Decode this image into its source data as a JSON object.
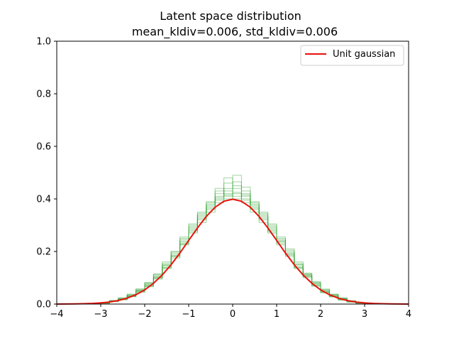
{
  "chart_data": {
    "type": "line",
    "title": "Latent space distribution",
    "subtitle": "mean_kldiv=0.006, std_kldiv=0.006",
    "xlabel": "",
    "ylabel": "",
    "xlim": [
      -4,
      4
    ],
    "ylim": [
      0,
      1.0
    ],
    "x_ticks": [
      "−4",
      "−3",
      "−2",
      "−1",
      "0",
      "1",
      "2",
      "3",
      "4"
    ],
    "y_ticks": [
      "0.0",
      "0.2",
      "0.4",
      "0.6",
      "0.8",
      "1.0"
    ],
    "grid": false,
    "legend": {
      "position": "top-right",
      "entries": [
        "Unit gaussian"
      ]
    },
    "colors": {
      "gaussian": "#e8120c",
      "histograms": "#2ca02c"
    },
    "series": [
      {
        "name": "Unit gaussian",
        "style": "line",
        "x": [
          -4.0,
          -3.8,
          -3.6,
          -3.4,
          -3.2,
          -3.0,
          -2.8,
          -2.6,
          -2.4,
          -2.2,
          -2.0,
          -1.8,
          -1.6,
          -1.4,
          -1.2,
          -1.0,
          -0.8,
          -0.6,
          -0.4,
          -0.2,
          0.0,
          0.2,
          0.4,
          0.6,
          0.8,
          1.0,
          1.2,
          1.4,
          1.6,
          1.8,
          2.0,
          2.2,
          2.4,
          2.6,
          2.8,
          3.0,
          3.2,
          3.4,
          3.6,
          3.8,
          4.0
        ],
        "y": [
          0.0001,
          0.0003,
          0.0006,
          0.0012,
          0.0024,
          0.0044,
          0.0079,
          0.0136,
          0.0224,
          0.0355,
          0.054,
          0.079,
          0.1109,
          0.1497,
          0.1942,
          0.242,
          0.2897,
          0.3332,
          0.3683,
          0.391,
          0.3989,
          0.391,
          0.3683,
          0.3332,
          0.2897,
          0.242,
          0.1942,
          0.1497,
          0.1109,
          0.079,
          0.054,
          0.0355,
          0.0224,
          0.0136,
          0.0079,
          0.0044,
          0.0024,
          0.0012,
          0.0006,
          0.0003,
          0.0001
        ]
      },
      {
        "style": "step",
        "bin_edges": [
          -3.0,
          -2.8,
          -2.6,
          -2.4,
          -2.2,
          -2.0,
          -1.8,
          -1.6,
          -1.4,
          -1.2,
          -1.0,
          -0.8,
          -0.6,
          -0.4,
          -0.2,
          0.0,
          0.2,
          0.4,
          0.6,
          0.8,
          1.0,
          1.2,
          1.4,
          1.6,
          1.8,
          2.0,
          2.2,
          2.4,
          2.6,
          2.8,
          3.0
        ],
        "counts": [
          0.005,
          0.012,
          0.02,
          0.03,
          0.052,
          0.075,
          0.105,
          0.15,
          0.19,
          0.25,
          0.3,
          0.34,
          0.38,
          0.44,
          0.41,
          0.42,
          0.395,
          0.37,
          0.335,
          0.29,
          0.24,
          0.2,
          0.15,
          0.11,
          0.08,
          0.05,
          0.035,
          0.02,
          0.012,
          0.006
        ]
      },
      {
        "style": "step",
        "bin_edges": [
          -3.0,
          -2.8,
          -2.6,
          -2.4,
          -2.2,
          -2.0,
          -1.8,
          -1.6,
          -1.4,
          -1.2,
          -1.0,
          -0.8,
          -0.6,
          -0.4,
          -0.2,
          0.0,
          0.2,
          0.4,
          0.6,
          0.8,
          1.0,
          1.2,
          1.4,
          1.6,
          1.8,
          2.0,
          2.2,
          2.4,
          2.6,
          2.8,
          3.0
        ],
        "counts": [
          0.004,
          0.01,
          0.018,
          0.034,
          0.048,
          0.07,
          0.1,
          0.135,
          0.18,
          0.23,
          0.29,
          0.32,
          0.36,
          0.4,
          0.46,
          0.41,
          0.42,
          0.35,
          0.32,
          0.28,
          0.235,
          0.19,
          0.14,
          0.105,
          0.07,
          0.046,
          0.03,
          0.018,
          0.009,
          0.004
        ]
      },
      {
        "style": "step",
        "bin_edges": [
          -3.0,
          -2.8,
          -2.6,
          -2.4,
          -2.2,
          -2.0,
          -1.8,
          -1.6,
          -1.4,
          -1.2,
          -1.0,
          -0.8,
          -0.6,
          -0.4,
          -0.2,
          0.0,
          0.2,
          0.4,
          0.6,
          0.8,
          1.0,
          1.2,
          1.4,
          1.6,
          1.8,
          2.0,
          2.2,
          2.4,
          2.6,
          2.8,
          3.0
        ],
        "counts": [
          0.006,
          0.014,
          0.022,
          0.038,
          0.058,
          0.08,
          0.112,
          0.155,
          0.2,
          0.245,
          0.285,
          0.33,
          0.37,
          0.42,
          0.48,
          0.44,
          0.4,
          0.38,
          0.345,
          0.3,
          0.25,
          0.205,
          0.16,
          0.115,
          0.085,
          0.055,
          0.036,
          0.022,
          0.011,
          0.005
        ]
      },
      {
        "style": "step",
        "bin_edges": [
          -3.0,
          -2.8,
          -2.6,
          -2.4,
          -2.2,
          -2.0,
          -1.8,
          -1.6,
          -1.4,
          -1.2,
          -1.0,
          -0.8,
          -0.6,
          -0.4,
          -0.2,
          0.0,
          0.2,
          0.4,
          0.6,
          0.8,
          1.0,
          1.2,
          1.4,
          1.6,
          1.8,
          2.0,
          2.2,
          2.4,
          2.6,
          2.8,
          3.0
        ],
        "counts": [
          0.003,
          0.009,
          0.016,
          0.028,
          0.044,
          0.066,
          0.095,
          0.14,
          0.175,
          0.225,
          0.275,
          0.31,
          0.35,
          0.385,
          0.4,
          0.49,
          0.43,
          0.36,
          0.31,
          0.27,
          0.225,
          0.18,
          0.135,
          0.1,
          0.072,
          0.044,
          0.028,
          0.016,
          0.008,
          0.003
        ]
      },
      {
        "style": "step",
        "bin_edges": [
          -3.0,
          -2.8,
          -2.6,
          -2.4,
          -2.2,
          -2.0,
          -1.8,
          -1.6,
          -1.4,
          -1.2,
          -1.0,
          -0.8,
          -0.6,
          -0.4,
          -0.2,
          0.0,
          0.2,
          0.4,
          0.6,
          0.8,
          1.0,
          1.2,
          1.4,
          1.6,
          1.8,
          2.0,
          2.2,
          2.4,
          2.6,
          2.8,
          3.0
        ],
        "counts": [
          0.005,
          0.011,
          0.021,
          0.032,
          0.05,
          0.078,
          0.108,
          0.145,
          0.195,
          0.24,
          0.295,
          0.345,
          0.375,
          0.43,
          0.42,
          0.4,
          0.41,
          0.39,
          0.34,
          0.295,
          0.245,
          0.195,
          0.155,
          0.112,
          0.078,
          0.052,
          0.033,
          0.021,
          0.01,
          0.005
        ]
      },
      {
        "style": "step",
        "bin_edges": [
          -3.0,
          -2.8,
          -2.6,
          -2.4,
          -2.2,
          -2.0,
          -1.8,
          -1.6,
          -1.4,
          -1.2,
          -1.0,
          -0.8,
          -0.6,
          -0.4,
          -0.2,
          0.0,
          0.2,
          0.4,
          0.6,
          0.8,
          1.0,
          1.2,
          1.4,
          1.6,
          1.8,
          2.0,
          2.2,
          2.4,
          2.6,
          2.8,
          3.0
        ],
        "counts": [
          0.004,
          0.013,
          0.019,
          0.036,
          0.055,
          0.072,
          0.098,
          0.148,
          0.185,
          0.235,
          0.28,
          0.325,
          0.39,
          0.41,
          0.44,
          0.45,
          0.385,
          0.375,
          0.33,
          0.285,
          0.23,
          0.185,
          0.145,
          0.108,
          0.075,
          0.048,
          0.031,
          0.019,
          0.01,
          0.004
        ]
      },
      {
        "style": "step",
        "bin_edges": [
          -3.0,
          -2.8,
          -2.6,
          -2.4,
          -2.2,
          -2.0,
          -1.8,
          -1.6,
          -1.4,
          -1.2,
          -1.0,
          -0.8,
          -0.6,
          -0.4,
          -0.2,
          0.0,
          0.2,
          0.4,
          0.6,
          0.8,
          1.0,
          1.2,
          1.4,
          1.6,
          1.8,
          2.0,
          2.2,
          2.4,
          2.6,
          2.8,
          3.0
        ],
        "counts": [
          0.006,
          0.01,
          0.024,
          0.031,
          0.047,
          0.082,
          0.115,
          0.16,
          0.2,
          0.255,
          0.305,
          0.35,
          0.385,
          0.395,
          0.43,
          0.425,
          0.415,
          0.365,
          0.325,
          0.305,
          0.255,
          0.21,
          0.15,
          0.118,
          0.082,
          0.057,
          0.038,
          0.024,
          0.013,
          0.006
        ]
      },
      {
        "style": "step",
        "bin_edges": [
          -3.0,
          -2.8,
          -2.6,
          -2.4,
          -2.2,
          -2.0,
          -1.8,
          -1.6,
          -1.4,
          -1.2,
          -1.0,
          -0.8,
          -0.6,
          -0.4,
          -0.2,
          0.0,
          0.2,
          0.4,
          0.6,
          0.8,
          1.0,
          1.2,
          1.4,
          1.6,
          1.8,
          2.0,
          2.2,
          2.4,
          2.6,
          2.8,
          3.0
        ],
        "counts": [
          0.003,
          0.012,
          0.017,
          0.029,
          0.053,
          0.068,
          0.102,
          0.138,
          0.182,
          0.228,
          0.27,
          0.335,
          0.365,
          0.405,
          0.415,
          0.465,
          0.445,
          0.385,
          0.35,
          0.275,
          0.24,
          0.19,
          0.138,
          0.104,
          0.068,
          0.043,
          0.027,
          0.015,
          0.007,
          0.003
        ]
      }
    ]
  }
}
